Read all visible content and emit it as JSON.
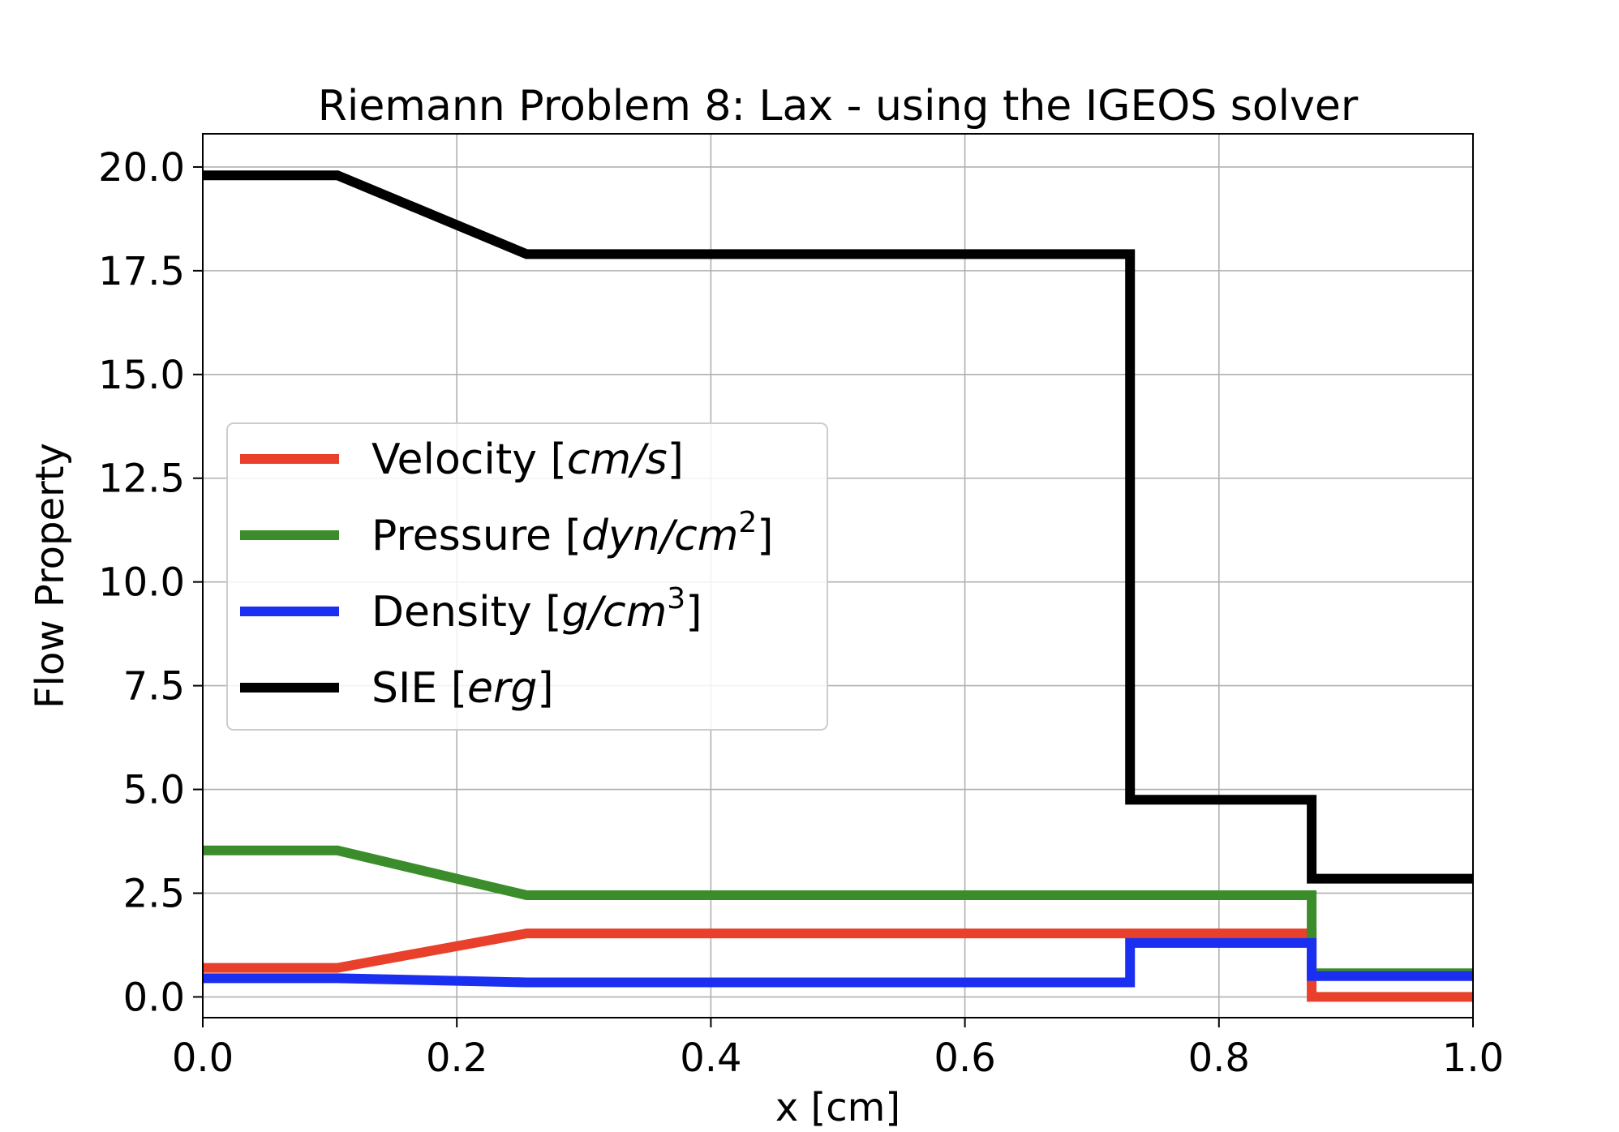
{
  "chart_data": {
    "type": "line",
    "title": "Riemann Problem 8: Lax - using the IGEOS solver",
    "xlabel": "x [cm]",
    "ylabel": "Flow Property",
    "xlim": [
      0.0,
      1.0
    ],
    "ylim": [
      -0.5,
      20.8
    ],
    "xticks": [
      "0.0",
      "0.2",
      "0.4",
      "0.6",
      "0.8",
      "1.0"
    ],
    "yticks": [
      "0.0",
      "2.5",
      "5.0",
      "7.5",
      "10.0",
      "12.5",
      "15.0",
      "17.5",
      "20.0"
    ],
    "grid": true,
    "legend_position": "center-left",
    "series": [
      {
        "name": "Velocity",
        "unit": "cm/s",
        "color": "#e8402a",
        "x": [
          0.0,
          0.106,
          0.255,
          0.873,
          0.873,
          1.0
        ],
        "y": [
          0.7,
          0.7,
          1.53,
          1.53,
          0.0,
          0.0
        ]
      },
      {
        "name": "Pressure",
        "unit": "dyn/cm",
        "unit_sup": "2",
        "color": "#3b8c2a",
        "x": [
          0.0,
          0.106,
          0.255,
          0.873,
          0.873,
          1.0
        ],
        "y": [
          3.53,
          3.53,
          2.45,
          2.45,
          0.57,
          0.57
        ]
      },
      {
        "name": "Density",
        "unit": "g/cm",
        "unit_sup": "3",
        "color": "#1a2ff0",
        "x": [
          0.0,
          0.106,
          0.255,
          0.73,
          0.73,
          0.873,
          0.873,
          1.0
        ],
        "y": [
          0.45,
          0.45,
          0.35,
          0.35,
          1.3,
          1.3,
          0.5,
          0.5
        ]
      },
      {
        "name": "SIE",
        "unit": "erg",
        "color": "#000000",
        "x": [
          0.0,
          0.106,
          0.255,
          0.73,
          0.73,
          0.873,
          0.873,
          1.0
        ],
        "y": [
          19.8,
          19.8,
          17.9,
          17.9,
          4.75,
          4.75,
          2.85,
          2.85
        ]
      }
    ]
  }
}
